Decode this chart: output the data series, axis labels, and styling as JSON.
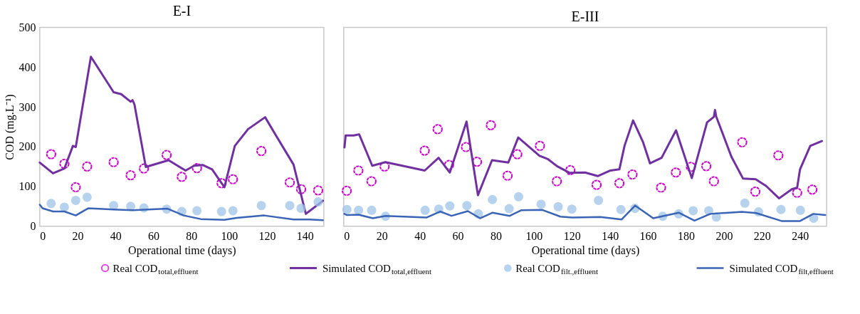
{
  "chart_data": [
    {
      "type": "line",
      "title": "E-I",
      "xlabel": "Operational time (days)",
      "ylabel": "COD (mg.L⁻¹)",
      "xlim": [
        0,
        150
      ],
      "xticks": [
        0,
        20,
        40,
        60,
        80,
        100,
        120,
        140
      ],
      "ylim": [
        0,
        500
      ],
      "yticks": [
        0,
        100,
        200,
        300,
        400,
        500
      ],
      "grid": false,
      "legend": "bottom",
      "series": [
        {
          "name": "Real COD$_{total,effluent}$",
          "type": "scatter",
          "marker": "circle",
          "color": "#cc00cc",
          "x": [
            6,
            13,
            19,
            25,
            39,
            48,
            55,
            67,
            75,
            83,
            96,
            102,
            117,
            132,
            138,
            147
          ],
          "values": [
            181,
            157,
            98,
            150,
            161,
            128,
            145,
            179,
            124,
            146,
            108,
            118,
            189,
            110,
            93,
            90
          ]
        },
        {
          "name": "Simulated COD$_{total,effluent}$",
          "color": "#7030a0",
          "x": [
            0,
            7,
            13,
            17.5,
            19,
            27,
            39,
            43,
            48,
            49,
            50,
            56,
            68,
            77,
            81.5,
            86,
            91,
            97.5,
            103,
            110,
            119,
            125,
            134,
            140.5,
            149.5
          ],
          "values": [
            160,
            133,
            145,
            202,
            199,
            426,
            337,
            332,
            313,
            317,
            306,
            149,
            166,
            140,
            152,
            154,
            143,
            98,
            202,
            244,
            274,
            226,
            155,
            31,
            64
          ]
        },
        {
          "name": "Real COD$_{filt.,effluent}$",
          "type": "scatter",
          "marker": "circle",
          "color": "#9dc3e6",
          "x": [
            6,
            13,
            19,
            25,
            39,
            48,
            55,
            67,
            75,
            83,
            96,
            102,
            117,
            132,
            138,
            147
          ],
          "values": [
            57,
            48,
            65,
            73,
            52,
            50,
            46,
            43,
            37,
            39,
            37,
            39,
            52,
            52,
            45,
            61
          ]
        },
        {
          "name": "Simulated COD$_{filt,effluent}$",
          "color": "#3a64b5",
          "x": [
            0,
            1.5,
            7,
            13,
            19,
            25.5,
            39,
            49,
            67.5,
            76,
            85,
            97.5,
            104,
            118.5,
            134,
            142.5,
            149.5
          ],
          "values": [
            54,
            45,
            37,
            37,
            27,
            45,
            42,
            40,
            44,
            27,
            18,
            16,
            21,
            27,
            17,
            17,
            15
          ]
        }
      ]
    },
    {
      "type": "line",
      "title": "E-III",
      "xlabel": "Operational time (days)",
      "xlim": [
        0,
        254
      ],
      "xticks": [
        0,
        20,
        40,
        60,
        80,
        100,
        120,
        140,
        160,
        180,
        200,
        220,
        240
      ],
      "ylim": [
        0,
        500
      ],
      "grid": false,
      "tick_labels": "x",
      "series": [
        {
          "type": "scatter",
          "marker": "circle",
          "color": "#cc00cc",
          "x": [
            1.6,
            7.7,
            14.6,
            21.5,
            42.6,
            49.4,
            55.4,
            64.3,
            70.1,
            77.4,
            86.2,
            91.3,
            103.2,
            112.1,
            119.2,
            133,
            145,
            151.9,
            166.9,
            174.7,
            182.6,
            190.7,
            194.7,
            209.6,
            216.5,
            228.6,
            238.5,
            246.5
          ],
          "values": [
            89,
            140,
            113,
            150,
            190,
            244,
            154,
            199,
            162,
            254,
            127,
            181,
            202,
            113,
            141,
            104,
            108,
            130,
            97,
            135,
            149,
            151,
            113,
            211,
            87,
            178,
            84,
            92
          ]
        },
        {
          "color": "#7030a0",
          "x": [
            0.4,
            1,
            5.3,
            8.1,
            15,
            22,
            42.6,
            49.9,
            55.8,
            64.6,
            70.6,
            78,
            86.6,
            91.8,
            103,
            107.3,
            112.2,
            118.9,
            126.9,
            133.6,
            140.3,
            145,
            147.7,
            152.2,
            157.4,
            161.1,
            167.2,
            174.8,
            183.1,
            191.1,
            194.7,
            195.3,
            195.9,
            203.9,
            210,
            216.7,
            222.2,
            229,
            235.7,
            238.5,
            240,
            245.4,
            251.5
          ],
          "values": [
            198,
            228,
            228,
            231,
            152,
            161,
            140,
            172,
            135,
            263,
            78,
            166,
            160,
            223,
            177,
            169,
            151,
            134,
            135,
            126,
            140,
            143,
            202,
            266,
            212,
            158,
            172,
            241,
            121,
            261,
            275,
            292,
            276,
            175,
            120,
            118,
            101,
            70,
            93,
            97,
            143,
            202,
            214
          ]
        },
        {
          "type": "scatter",
          "marker": "circle",
          "color": "#9dc3e6",
          "x": [
            1.7,
            7.8,
            14.7,
            22,
            42.8,
            50,
            55.8,
            64.8,
            70.8,
            78.2,
            87,
            92,
            103.8,
            112.8,
            120,
            134,
            145.8,
            153.2,
            167.8,
            176.2,
            183.8,
            192,
            196,
            211,
            218.2,
            230,
            240.2,
            247.2
          ],
          "values": [
            42,
            40,
            40,
            25,
            40,
            43,
            51,
            52,
            31,
            67,
            44,
            74,
            55,
            49,
            43,
            65,
            42,
            45,
            25,
            31,
            39,
            39,
            23,
            58,
            36,
            42,
            40,
            20
          ]
        },
        {
          "color": "#3a64b5",
          "x": [
            0.3,
            1.7,
            7.8,
            15.3,
            22,
            43.7,
            50.7,
            56.7,
            65.3,
            71.7,
            78.3,
            87.3,
            93.3,
            104.5,
            114,
            120.3,
            135,
            146.2,
            153.3,
            162.8,
            176.2,
            184.5,
            192.8,
            209.5,
            217,
            230.3,
            240,
            247,
            253.3
          ],
          "values": [
            31,
            28,
            29,
            20,
            26,
            22,
            37,
            26,
            38,
            20,
            34,
            26,
            40,
            41,
            24,
            22,
            23,
            17,
            52,
            20,
            34,
            14,
            31,
            36,
            33,
            13,
            13,
            31,
            28
          ]
        }
      ]
    }
  ]
}
